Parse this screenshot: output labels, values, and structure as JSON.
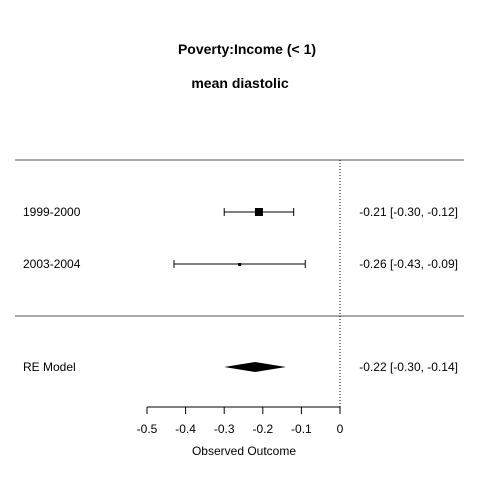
{
  "chart_data": {
    "type": "forest",
    "title": "Poverty:Income (< 1)",
    "subtitle": "mean diastolic",
    "xlabel": "Observed Outcome",
    "xlim": [
      -0.5,
      0
    ],
    "xticks": [
      -0.5,
      -0.4,
      -0.3,
      -0.2,
      -0.1,
      0
    ],
    "xtick_labels": [
      "-0.5",
      "-0.4",
      "-0.3",
      "-0.2",
      "-0.1",
      "0"
    ],
    "reference_line": 0,
    "studies": [
      {
        "label": "1999-2000",
        "estimate": -0.21,
        "ci": [
          -0.3,
          -0.12
        ],
        "weight": "large",
        "text": "-0.21 [-0.30, -0.12]"
      },
      {
        "label": "2003-2004",
        "estimate": -0.26,
        "ci": [
          -0.43,
          -0.09
        ],
        "weight": "small",
        "text": "-0.26 [-0.43, -0.09]"
      }
    ],
    "summary": {
      "label": "RE Model",
      "estimate": -0.22,
      "ci": [
        -0.3,
        -0.14
      ],
      "text": "-0.22 [-0.30, -0.14]"
    }
  }
}
